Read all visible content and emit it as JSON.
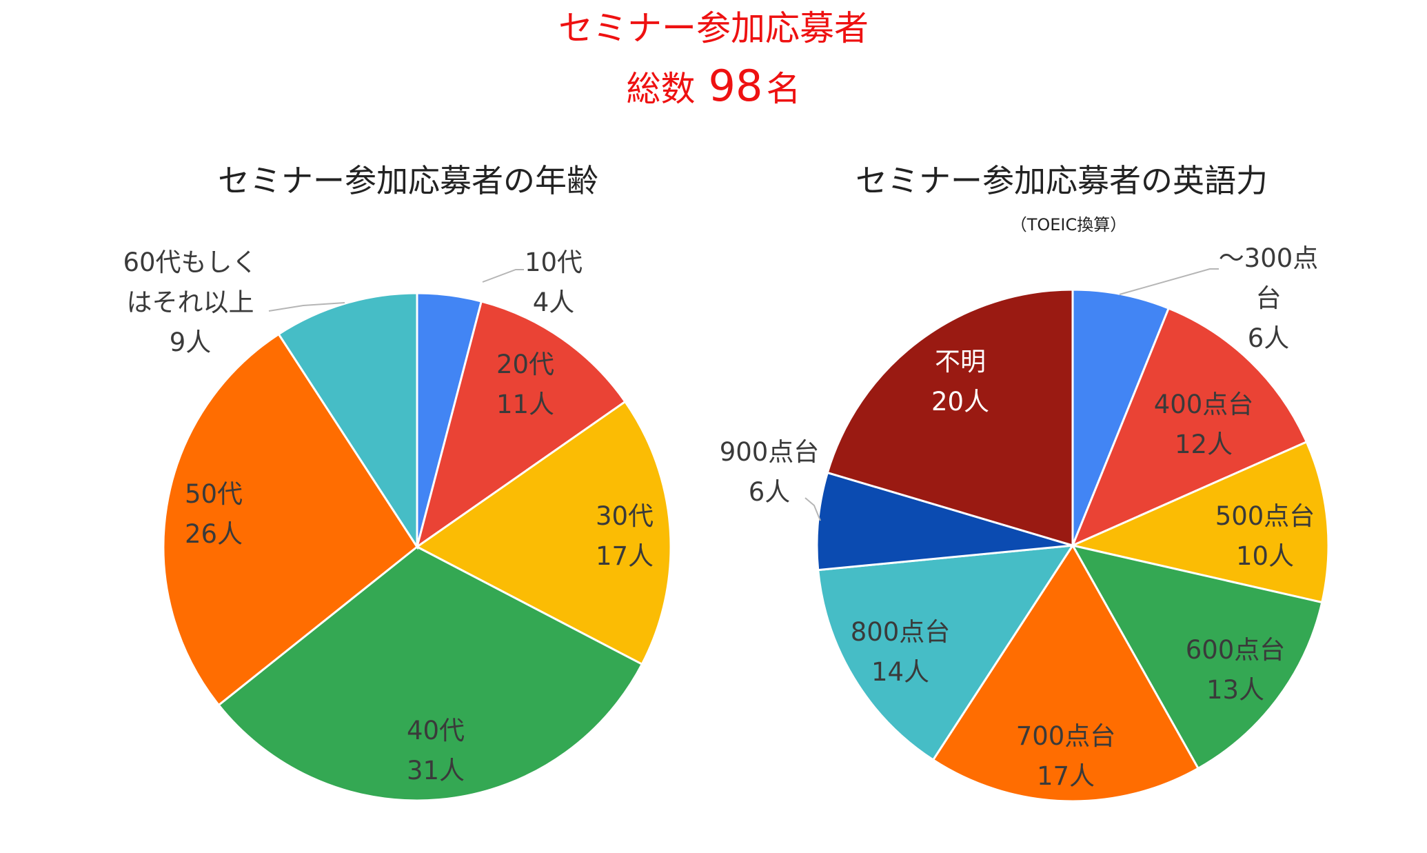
{
  "header": {
    "title": "セミナー参加応募者",
    "total_prefix": "総数",
    "total_value": "98",
    "total_suffix": "名"
  },
  "chart_data": [
    {
      "type": "pie",
      "title": "セミナー参加応募者の年齢",
      "slices": [
        {
          "label": "10代",
          "value": 4,
          "value_label": "4人",
          "color": "#4285f4"
        },
        {
          "label": "20代",
          "value": 11,
          "value_label": "11人",
          "color": "#ea4335"
        },
        {
          "label": "30代",
          "value": 17,
          "value_label": "17人",
          "color": "#fbbc04"
        },
        {
          "label": "40代",
          "value": 31,
          "value_label": "31人",
          "color": "#34a853"
        },
        {
          "label": "50代",
          "value": 26,
          "value_label": "26人",
          "color": "#ff6d01"
        },
        {
          "label": "60代もしくはそれ以上",
          "value": 9,
          "value_label": "9人",
          "color": "#46bdc6"
        }
      ]
    },
    {
      "type": "pie",
      "title": "セミナー参加応募者の英語力",
      "subtitle": "（TOEIC換算）",
      "slices": [
        {
          "label": "〜300点台",
          "value": 6,
          "value_label": "6人",
          "color": "#4285f4"
        },
        {
          "label": "400点台",
          "value": 12,
          "value_label": "12人",
          "color": "#ea4335"
        },
        {
          "label": "500点台",
          "value": 10,
          "value_label": "10人",
          "color": "#fbbc04"
        },
        {
          "label": "600点台",
          "value": 13,
          "value_label": "13人",
          "color": "#34a853"
        },
        {
          "label": "700点台",
          "value": 17,
          "value_label": "17人",
          "color": "#ff6d01"
        },
        {
          "label": "800点台",
          "value": 14,
          "value_label": "14人",
          "color": "#46bdc6"
        },
        {
          "label": "900点台",
          "value": 6,
          "value_label": "6人",
          "color": "#0b4bb1"
        },
        {
          "label": "不明",
          "value": 20,
          "value_label": "20人",
          "color": "#9a1a12"
        }
      ]
    }
  ]
}
